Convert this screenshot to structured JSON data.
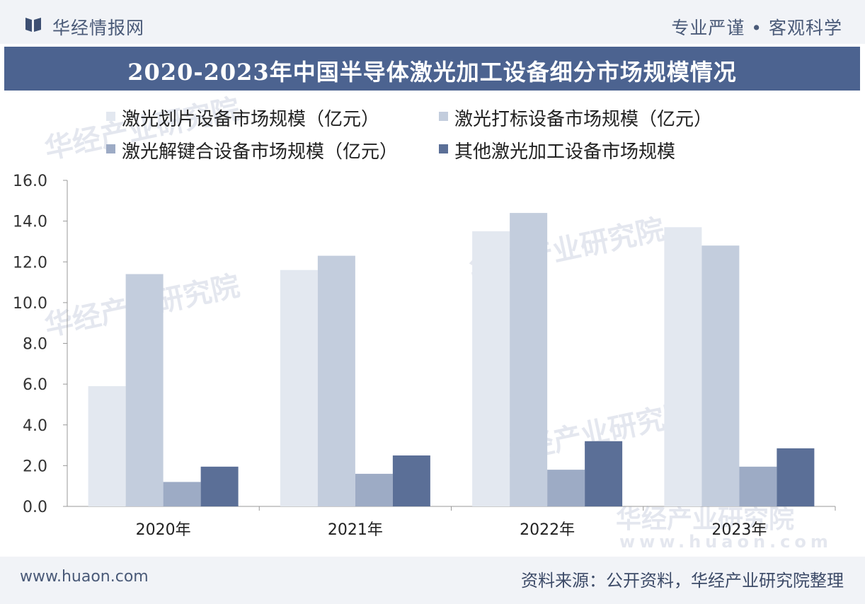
{
  "header": {
    "brand": "华经情报网",
    "slogan": "专业严谨 • 客观科学",
    "title": "2020-2023年中国半导体激光加工设备细分市场规模情况"
  },
  "footer": {
    "site": "www.huaon.com",
    "source": "资料来源：公开资料，华经产业研究院整理"
  },
  "watermark": {
    "text": "华经产业研究院",
    "url": "www.huaon.com"
  },
  "colors": {
    "brand": "#4c6390",
    "series": [
      "#e3e8f0",
      "#c3cddd",
      "#9dabc5",
      "#5b6f97"
    ]
  },
  "chart_data": {
    "type": "bar",
    "categories": [
      "2020年",
      "2021年",
      "2022年",
      "2023年"
    ],
    "series": [
      {
        "name": "激光划片设备市场规模（亿元）",
        "values": [
          5.9,
          11.6,
          13.5,
          13.7
        ]
      },
      {
        "name": "激光打标设备市场规模（亿元）",
        "values": [
          11.4,
          12.3,
          14.4,
          12.8
        ]
      },
      {
        "name": "激光解键合设备市场规模（亿元）",
        "values": [
          1.2,
          1.6,
          1.8,
          1.95
        ]
      },
      {
        "name": "其他激光加工设备市场规模",
        "values": [
          1.95,
          2.5,
          3.2,
          2.85
        ]
      }
    ],
    "yticks": [
      "0.0",
      "2.0",
      "4.0",
      "6.0",
      "8.0",
      "10.0",
      "12.0",
      "14.0",
      "16.0"
    ],
    "ylim": [
      0,
      16
    ],
    "title": "2020-2023年中国半导体激光加工设备细分市场规模情况",
    "legend_position": "top",
    "grid": false
  }
}
